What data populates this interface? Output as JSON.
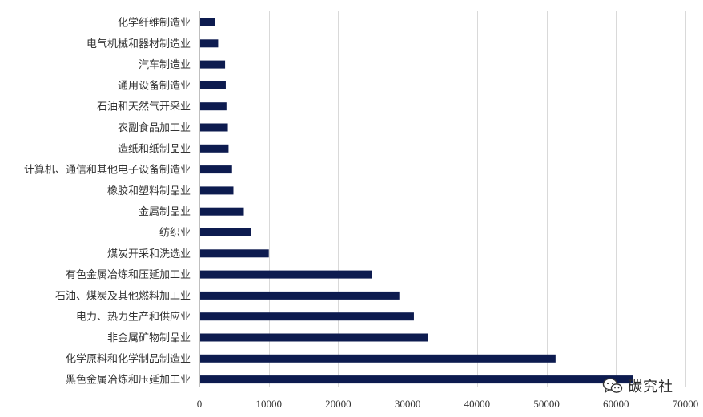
{
  "chart_data": {
    "type": "bar",
    "orientation": "horizontal",
    "categories": [
      "化学纤维制造业",
      "电气机械和器材制造业",
      "汽车制造业",
      "通用设备制造业",
      "石油和天然气开采业",
      "农副食品加工业",
      "造纸和纸制品业",
      "计算机、通信和其他电子设备制造业",
      "橡胶和塑料制品业",
      "金属制品业",
      "纺织业",
      "煤炭开采和洗选业",
      "有色金属冶炼和压延加工业",
      "石油、煤炭及其他燃料加工业",
      "电力、热力生产和供应业",
      "非金属矿物制品业",
      "化学原料和化学制品制造业",
      "黑色金属冶炼和压延加工业"
    ],
    "values": [
      2300,
      2700,
      3700,
      3800,
      3900,
      4100,
      4200,
      4700,
      4900,
      6400,
      7400,
      10000,
      24800,
      28800,
      30900,
      32900,
      51300,
      62400
    ],
    "xlim": [
      0,
      70000
    ],
    "xticks": [
      0,
      10000,
      20000,
      30000,
      40000,
      50000,
      60000,
      70000
    ],
    "grid": "vertical",
    "bar_color": "#0d1b4f",
    "title": "",
    "xlabel": "",
    "ylabel": ""
  },
  "watermark": {
    "text": "碳究社",
    "icon": "wechat-icon"
  }
}
